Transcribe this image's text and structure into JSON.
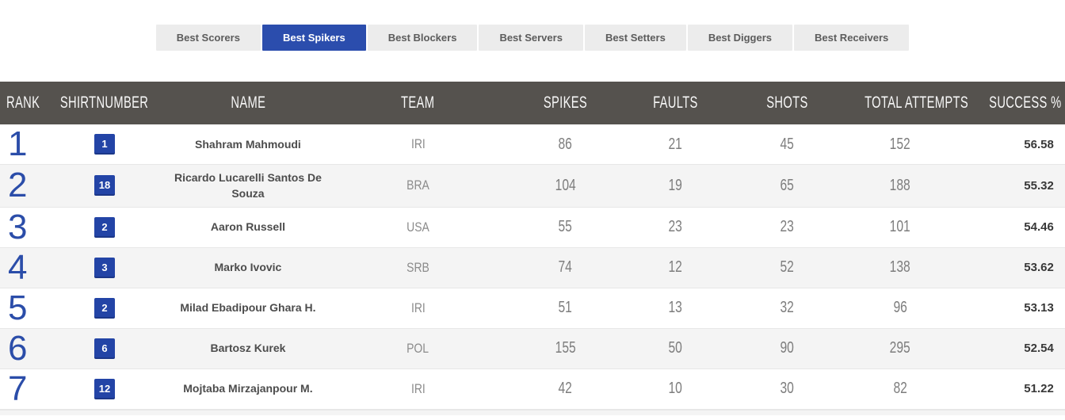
{
  "tabs": {
    "items": [
      {
        "label": "Best Scorers",
        "active": false
      },
      {
        "label": "Best Spikers",
        "active": true
      },
      {
        "label": "Best Blockers",
        "active": false
      },
      {
        "label": "Best Servers",
        "active": false
      },
      {
        "label": "Best Setters",
        "active": false
      },
      {
        "label": "Best Diggers",
        "active": false
      },
      {
        "label": "Best Receivers",
        "active": false
      }
    ]
  },
  "table": {
    "headers": {
      "rank": "RANK",
      "shirt": "SHIRTNUMBER",
      "name": "NAME",
      "team": "TEAM",
      "spikes": "SPIKES",
      "faults": "FAULTS",
      "shots": "SHOTS",
      "total": "TOTAL ATTEMPTS",
      "success": "SUCCESS %"
    },
    "rows": [
      {
        "rank": "1",
        "shirt": "1",
        "name": "Shahram Mahmoudi",
        "team": "IRI",
        "spikes": "86",
        "faults": "21",
        "shots": "45",
        "total": "152",
        "success": "56.58"
      },
      {
        "rank": "2",
        "shirt": "18",
        "name": "Ricardo Lucarelli Santos De Souza",
        "team": "BRA",
        "spikes": "104",
        "faults": "19",
        "shots": "65",
        "total": "188",
        "success": "55.32"
      },
      {
        "rank": "3",
        "shirt": "2",
        "name": "Aaron Russell",
        "team": "USA",
        "spikes": "55",
        "faults": "23",
        "shots": "23",
        "total": "101",
        "success": "54.46"
      },
      {
        "rank": "4",
        "shirt": "3",
        "name": "Marko Ivovic",
        "team": "SRB",
        "spikes": "74",
        "faults": "12",
        "shots": "52",
        "total": "138",
        "success": "53.62"
      },
      {
        "rank": "5",
        "shirt": "2",
        "name": "Milad Ebadipour Ghara H.",
        "team": "IRI",
        "spikes": "51",
        "faults": "13",
        "shots": "32",
        "total": "96",
        "success": "53.13"
      },
      {
        "rank": "6",
        "shirt": "6",
        "name": "Bartosz Kurek",
        "team": "POL",
        "spikes": "155",
        "faults": "50",
        "shots": "90",
        "total": "295",
        "success": "52.54"
      },
      {
        "rank": "7",
        "shirt": "12",
        "name": "Mojtaba Mirzajanpour M.",
        "team": "IRI",
        "spikes": "42",
        "faults": "10",
        "shots": "30",
        "total": "82",
        "success": "51.22"
      }
    ]
  },
  "colors": {
    "accent_blue": "#2b4dad",
    "badge_blue": "#2344a6",
    "rank_blue": "#2b4da9",
    "header_bg": "#55524e",
    "row_alt_bg": "#f4f4f4",
    "tab_bg": "#ececec"
  }
}
